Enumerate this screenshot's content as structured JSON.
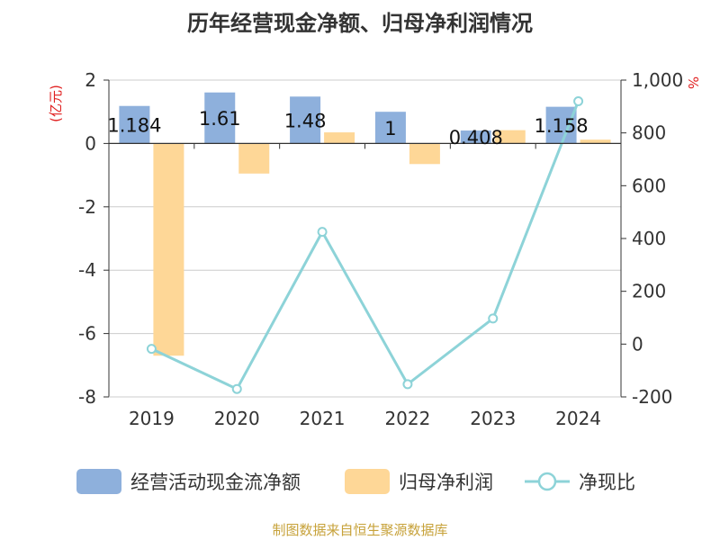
{
  "title": "历年经营现金净额、归母净利润情况",
  "footer": "制图数据来自恒生聚源数据库",
  "colors": {
    "bar1": "#8eb0dc",
    "bar2": "#fed797",
    "line": "#8dd3d8",
    "unit": "#e02020",
    "grid": "#cccccc",
    "axis": "#333333"
  },
  "chart_data": {
    "type": "bar",
    "title": "历年经营现金净额、归母净利润情况",
    "categories": [
      "2019",
      "2020",
      "2021",
      "2022",
      "2023",
      "2024"
    ],
    "left_axis": {
      "unit": "(亿元)",
      "ylim": [
        -8,
        2
      ],
      "ticks": [
        2,
        0,
        -2,
        -4,
        -6,
        -8
      ],
      "tick_labels": [
        "2",
        "0",
        "-2",
        "-4",
        "-6",
        "-8"
      ]
    },
    "right_axis": {
      "unit": "%",
      "ylim": [
        -200,
        1000
      ],
      "ticks": [
        1000,
        800,
        600,
        400,
        200,
        0,
        -200
      ],
      "tick_labels": [
        "1,000",
        "800",
        "600",
        "400",
        "200",
        "0",
        "-200"
      ]
    },
    "series": [
      {
        "name": "经营活动现金流净额",
        "type": "bar",
        "axis": "left",
        "values": [
          1.184,
          1.61,
          1.48,
          1,
          0.408,
          1.158
        ],
        "labels": [
          "1.184",
          "1.61",
          "1.48",
          "1",
          "0.408",
          "1.158"
        ]
      },
      {
        "name": "归母净利润",
        "type": "bar",
        "axis": "left",
        "values": [
          -6.7,
          -0.95,
          0.35,
          -0.65,
          0.42,
          0.12
        ]
      },
      {
        "name": "净现比",
        "type": "line",
        "axis": "right",
        "values": [
          -18,
          -170,
          425,
          -152,
          97,
          920
        ]
      }
    ],
    "grid": true,
    "legend_position": "bottom"
  }
}
